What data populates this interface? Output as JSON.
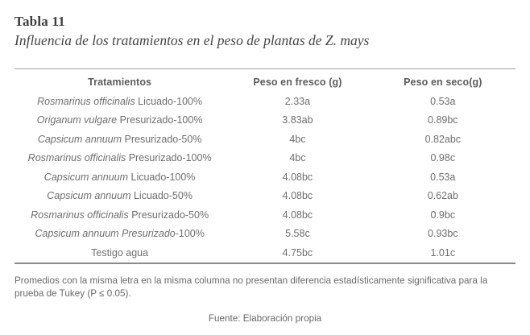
{
  "header": {
    "label": "Tabla 11",
    "title": "Influencia de los tratamientos en el peso de plantas de Z. mays"
  },
  "table": {
    "columns": [
      "Tratamientos",
      "Peso en fresco (g)",
      "Peso en seco(g)"
    ],
    "rows": [
      {
        "sci": "Rosmarinus officinalis",
        "rest": " Licuado-100%",
        "fresco": "2.33a",
        "seco": "0.53a"
      },
      {
        "sci": "Origanum vulgare",
        "rest": " Presurizado-100%",
        "fresco": "3.83ab",
        "seco": "0.89bc"
      },
      {
        "sci": "Capsicum annuum",
        "rest": " Presurizado-50%",
        "fresco": "4bc",
        "seco": "0.82abc"
      },
      {
        "sci": "Rosmarinus officinalis",
        "rest": " Presurizado-100%",
        "fresco": "4bc",
        "seco": "0.98c"
      },
      {
        "sci": "Capsicum annuum",
        "rest": " Licuado-100%",
        "fresco": "4.08bc",
        "seco": "0.53a"
      },
      {
        "sci": "Capsicum annuum",
        "rest": " Licuado-50%",
        "fresco": "4.08bc",
        "seco": "0.62ab"
      },
      {
        "sci": "Rosmarinus officinalis",
        "rest": " Presurizado-50%",
        "fresco": "4.08bc",
        "seco": "0.9bc"
      },
      {
        "sci": "Capsicum annuum Presurizado",
        "rest": "-100%",
        "fresco": "5.58c",
        "seco": "0.93bc"
      },
      {
        "sci": "",
        "rest": "Testigo agua",
        "fresco": "4.75bc",
        "seco": "1.01c"
      }
    ]
  },
  "footnote": "Promedios con la misma letra en la misma columna no presentan diferencia estadísticamente significativa para la prueba de Tukey (P ≤ 0.05).",
  "source": "Fuente: Elaboración propia",
  "colors": {
    "background": "#ffffff",
    "title_text": "#3e3e3e",
    "body_text": "#6e6e6e",
    "rule_top": "#a3a3a3",
    "rule_bottom": "#8a8a8a"
  }
}
